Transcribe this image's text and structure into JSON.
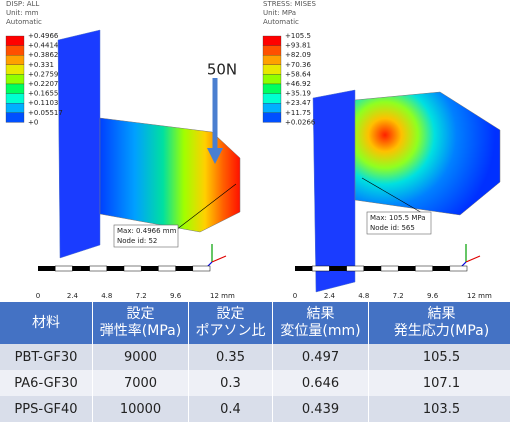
{
  "panels": [
    {
      "header": [
        "DISP: ALL",
        "Unit: mm",
        "Automatic"
      ],
      "legend": [
        "+0.4966",
        "+0.4414",
        "+0.3862",
        "+0.331",
        "+0.2759",
        "+0.2207",
        "+0.1655",
        "+0.1103",
        "+0.05517",
        "+0"
      ],
      "load_label": "50N",
      "callout": [
        "Max: 0.4966 mm",
        "Node id: 52"
      ],
      "scale": [
        "0",
        "2.4",
        "4.8",
        "7.2",
        "9.6",
        "12 mm"
      ]
    },
    {
      "header": [
        "STRESS: MISES",
        "Unit: MPa",
        "Automatic"
      ],
      "legend": [
        "+105.5",
        "+93.81",
        "+82.09",
        "+70.36",
        "+58.64",
        "+46.92",
        "+35.19",
        "+23.47",
        "+11.75",
        "+0.0266"
      ],
      "callout": [
        "Max: 105.5 MPa",
        "Node id: 565"
      ],
      "scale": [
        "0",
        "2.4",
        "4.8",
        "7.2",
        "9.6",
        "12 mm"
      ]
    }
  ],
  "table": {
    "headers": [
      [
        "材料"
      ],
      [
        "設定",
        "弾性率(MPa)"
      ],
      [
        "設定",
        "ポアソン比"
      ],
      [
        "結果",
        "変位量(mm)"
      ],
      [
        "結果",
        "発生応力(MPa)"
      ]
    ],
    "rows": [
      [
        "PBT-GF30",
        "9000",
        "0.35",
        "0.497",
        "105.5"
      ],
      [
        "PA6-GF30",
        "7000",
        "0.3",
        "0.646",
        "107.1"
      ],
      [
        "PPS-GF40",
        "10000",
        "0.4",
        "0.439",
        "103.5"
      ]
    ]
  }
}
